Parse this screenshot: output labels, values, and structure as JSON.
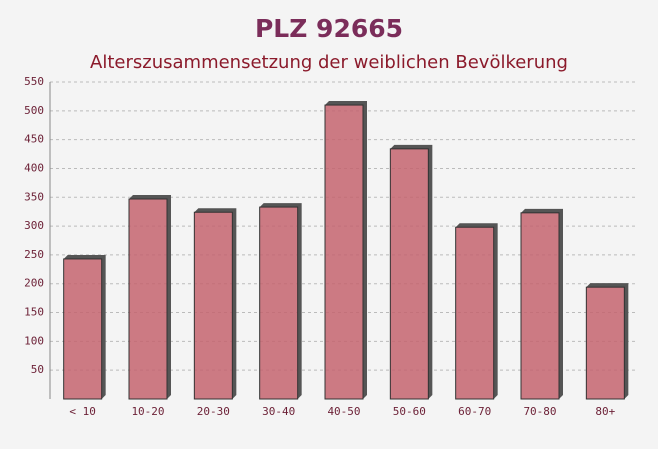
{
  "chart_data": {
    "type": "bar",
    "title": "PLZ 92665",
    "subtitle": "Alterszusammensetzung der weiblichen Bevölkerung",
    "categories": [
      "< 10",
      "10-20",
      "20-30",
      "30-40",
      "40-50",
      "50-60",
      "60-70",
      "70-80",
      "80+"
    ],
    "values": [
      243,
      347,
      324,
      333,
      510,
      434,
      298,
      323,
      194
    ],
    "color": "#c4646f",
    "ylim": [
      0,
      550
    ],
    "yticks": [
      50,
      100,
      150,
      200,
      250,
      300,
      350,
      400,
      450,
      500,
      550
    ],
    "grid": true
  }
}
